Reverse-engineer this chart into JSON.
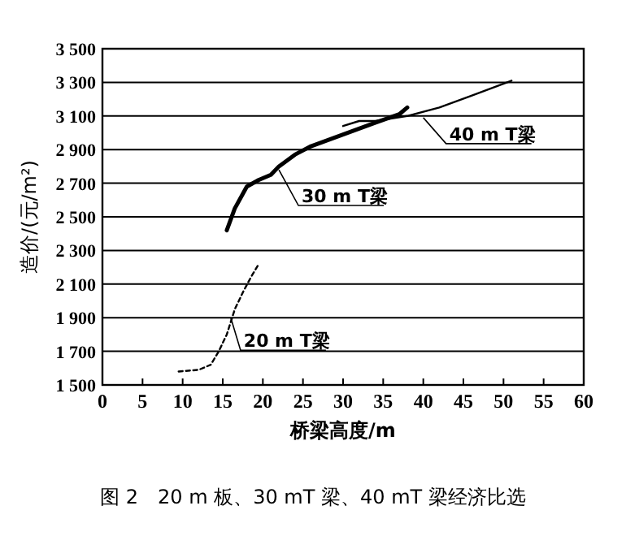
{
  "chart_data": {
    "type": "line",
    "title": "图 2　20 m 板、30 mT 梁、40 mT 梁经济比选",
    "xlabel": "桥梁高度/m",
    "ylabel": "造价/(元/m²)",
    "xlim": [
      0,
      60
    ],
    "xticks": [
      0,
      5,
      10,
      15,
      20,
      25,
      30,
      35,
      40,
      45,
      50,
      55,
      60
    ],
    "ylim": [
      1500,
      3500
    ],
    "yticks": [
      {
        "value": 1500,
        "label": "1 500"
      },
      {
        "value": 1700,
        "label": "1 700"
      },
      {
        "value": 1900,
        "label": "1 900"
      },
      {
        "value": 2100,
        "label": "2 100"
      },
      {
        "value": 2300,
        "label": "2 300"
      },
      {
        "value": 2500,
        "label": "2 500"
      },
      {
        "value": 2700,
        "label": "2 700"
      },
      {
        "value": 2900,
        "label": "2 900"
      },
      {
        "value": 3100,
        "label": "3 100"
      },
      {
        "value": 3300,
        "label": "3 300"
      },
      {
        "value": 3500,
        "label": "3 500"
      }
    ],
    "grid": "y",
    "series": [
      {
        "color": "#000000",
        "line_style": "dashed",
        "x": [
          9.5,
          12,
          13.5,
          14.5,
          15.5,
          16.5,
          17.5,
          18.5,
          19.5
        ],
        "values": [
          1580,
          1590,
          1620,
          1700,
          1800,
          1950,
          2050,
          2140,
          2220
        ]
      },
      {
        "color": "#000000",
        "line_style": "solid",
        "x": [
          15.5,
          16.5,
          18,
          19.5,
          21,
          22,
          24,
          26,
          30,
          34,
          37,
          38
        ],
        "values": [
          2420,
          2550,
          2680,
          2720,
          2750,
          2800,
          2870,
          2920,
          2990,
          3060,
          3110,
          3150
        ]
      },
      {
        "color": "#000000",
        "line_style": "solid",
        "x": [
          30,
          32,
          34,
          38,
          42,
          46,
          51
        ],
        "values": [
          3040,
          3070,
          3070,
          3100,
          3150,
          3220,
          3310
        ]
      }
    ],
    "annotations": [
      {
        "text": "40 m T梁",
        "x": 40,
        "y": 3090
      },
      {
        "text": "30 m T梁",
        "x": 22,
        "y": 2780
      },
      {
        "text": "20 m T梁",
        "x": 16,
        "y": 1900
      }
    ]
  }
}
